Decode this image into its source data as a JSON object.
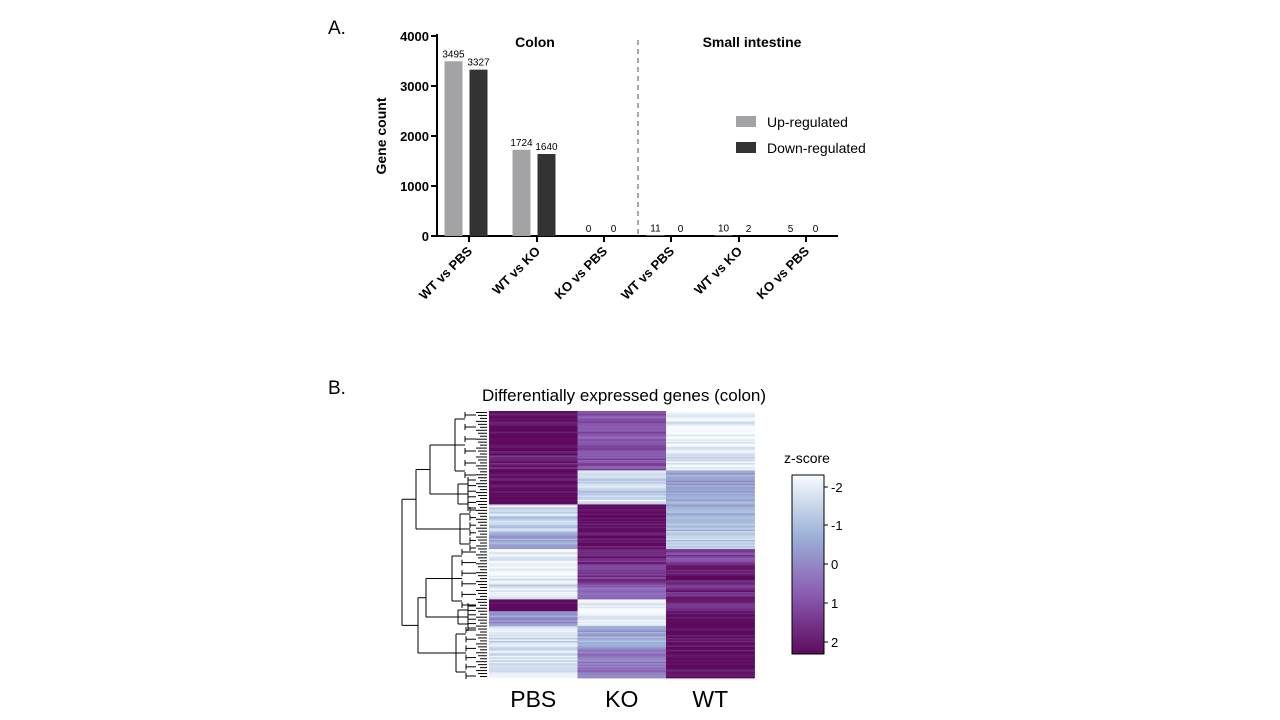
{
  "panel_labels": {
    "a": "A.",
    "b": "B."
  },
  "chart_data": [
    {
      "type": "bar",
      "panel": "A.",
      "ylabel": "Gene count",
      "xlabel": "",
      "ylim": [
        0,
        4000
      ],
      "yticks": [
        0,
        1000,
        2000,
        3000,
        4000
      ],
      "group_titles": [
        "Colon",
        "Small intestine"
      ],
      "categories": [
        "WT vs PBS",
        "WT vs KO",
        "KO vs PBS",
        "WT vs PBS",
        "WT vs KO",
        "KO vs PBS"
      ],
      "series": [
        {
          "name": "Up-regulated",
          "color": "#a3a3a6",
          "values": [
            3495,
            1724,
            0,
            11,
            10,
            5
          ]
        },
        {
          "name": "Down-regulated",
          "color": "#333333",
          "values": [
            3327,
            1640,
            0,
            0,
            2,
            0
          ]
        }
      ],
      "legend_placement": "right",
      "grid": false
    },
    {
      "type": "heatmap",
      "panel": "B.",
      "title": "Differentially expressed genes (colon)",
      "columns": [
        "PBS",
        "KO",
        "WT"
      ],
      "colorbar_title": "z-score",
      "colorbar_ticks": [
        "-2",
        "-1",
        "0",
        "1",
        "2"
      ],
      "colorscale": [
        "#f7fbfd",
        "#9db3d8",
        "#8a5cb3",
        "#5e0a5c"
      ],
      "row_blocks": [
        {
          "rows": 30,
          "values": [
            2,
            0.8,
            -1.8
          ]
        },
        {
          "rows": 10,
          "values": [
            1.6,
            0.9,
            -1.6
          ]
        },
        {
          "rows": 15,
          "values": [
            2,
            -1.2,
            -0.4
          ]
        },
        {
          "rows": 8,
          "values": [
            2,
            -1.5,
            -0.8
          ]
        },
        {
          "rows": 8,
          "values": [
            -1.5,
            2,
            -0.5
          ]
        },
        {
          "rows": 10,
          "values": [
            -1.2,
            2,
            -0.8
          ]
        },
        {
          "rows": 12,
          "values": [
            -0.5,
            1.8,
            -1.2
          ]
        },
        {
          "rows": 10,
          "values": [
            -1.8,
            1.5,
            1.0
          ]
        },
        {
          "rows": 14,
          "values": [
            -1.8,
            1.2,
            1.8
          ]
        },
        {
          "rows": 10,
          "values": [
            -1.5,
            0.6,
            1.5
          ]
        },
        {
          "rows": 8,
          "values": [
            2,
            -1.8,
            1.5
          ]
        },
        {
          "rows": 10,
          "values": [
            -0.2,
            -1.8,
            2
          ]
        },
        {
          "rows": 15,
          "values": [
            -1.4,
            -0.5,
            2
          ]
        },
        {
          "rows": 20,
          "values": [
            -1.6,
            0.2,
            2
          ]
        }
      ]
    }
  ]
}
